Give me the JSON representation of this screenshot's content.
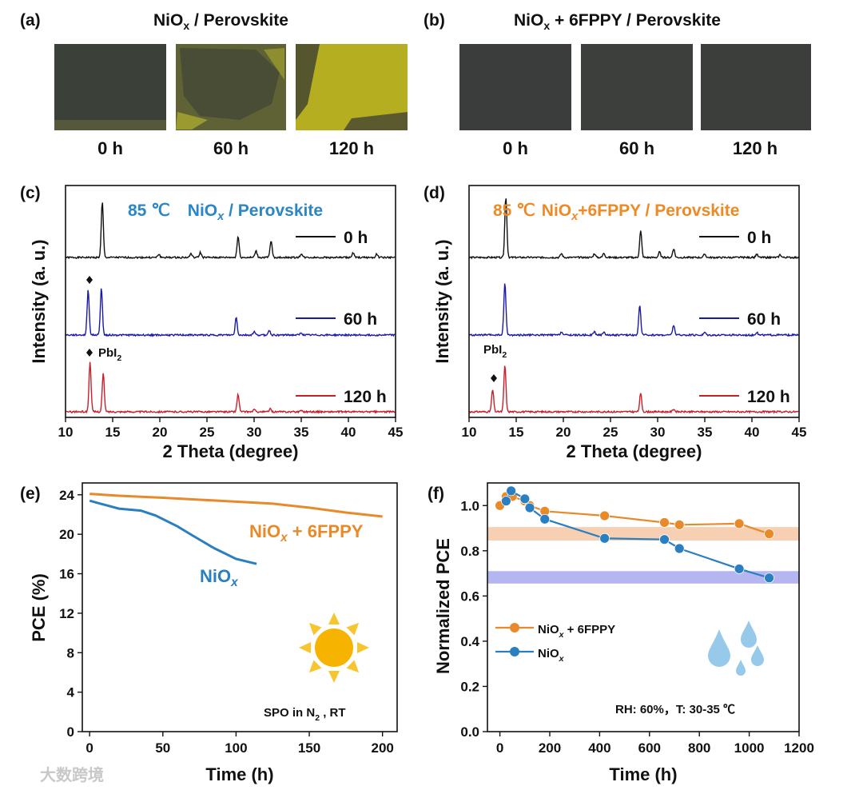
{
  "panels": {
    "a": {
      "label": "(a)",
      "title_main": "NiO",
      "title_sub": "x",
      "title_rest": " / Perovskite",
      "captions": [
        "0 h",
        "60 h",
        "120 h"
      ]
    },
    "b": {
      "label": "(b)",
      "title_main": "NiO",
      "title_sub": "x",
      "title_rest": " + 6FPPY / Perovskite",
      "captions": [
        "0 h",
        "60 h",
        "120 h"
      ]
    },
    "c": {
      "label": "(c)"
    },
    "d": {
      "label": "(d)"
    },
    "e": {
      "label": "(e)"
    },
    "f": {
      "label": "(f)"
    }
  },
  "colors": {
    "black": "#111111",
    "blue": "#1a1aa8",
    "red": "#c8202a",
    "orange": "#e88a2a",
    "lightblue": "#2a7fc0",
    "title_blue": "#2a86c4",
    "title_orange": "#ee8a26"
  },
  "watermark": "大数跨境",
  "chart_data": [
    {
      "id": "c",
      "type": "line",
      "title_temp": "85 ℃",
      "title_main": "NiO",
      "title_sub": "x",
      "title_rest": " / Perovskite",
      "xlabel": "2 Theta (degree)",
      "ylabel": "Intensity (a. u.)",
      "xlim": [
        10,
        45
      ],
      "xticks": [
        "10",
        "15",
        "20",
        "25",
        "30",
        "35",
        "40",
        "45"
      ],
      "annotation_main": "PbI",
      "annotation_sub": "2",
      "series": [
        {
          "name": "0 h",
          "color": "#111111",
          "peaks": [
            [
              13.9,
              100
            ],
            [
              19.9,
              6
            ],
            [
              23.3,
              7
            ],
            [
              24.3,
              9
            ],
            [
              28.3,
              38
            ],
            [
              30.2,
              12
            ],
            [
              31.8,
              30
            ],
            [
              35,
              7
            ],
            [
              40.5,
              8
            ],
            [
              43,
              6
            ]
          ]
        },
        {
          "name": "60 h",
          "color": "#1a1aa8",
          "peaks": [
            [
              12.4,
              82
            ],
            [
              13.8,
              85
            ],
            [
              28.1,
              32
            ],
            [
              30,
              6
            ],
            [
              31.6,
              9
            ],
            [
              35,
              4
            ]
          ]
        },
        {
          "name": "120 h",
          "color": "#c8202a",
          "peaks": [
            [
              12.6,
              90
            ],
            [
              14.0,
              70
            ],
            [
              28.3,
              32
            ],
            [
              30,
              4
            ],
            [
              31.7,
              5
            ],
            [
              35,
              3
            ]
          ]
        }
      ]
    },
    {
      "id": "d",
      "type": "line",
      "title_temp": "85 ℃",
      "title_main": "NiO",
      "title_sub": "x",
      "title_rest": "+6FPPY / Perovskite",
      "xlabel": "2 Theta (degree)",
      "ylabel": "Intensity (a. u.)",
      "xlim": [
        10,
        45
      ],
      "xticks": [
        "10",
        "15",
        "20",
        "25",
        "30",
        "35",
        "40",
        "45"
      ],
      "annotation_main": "PbI",
      "annotation_sub": "2",
      "series": [
        {
          "name": "0 h",
          "color": "#111111",
          "peaks": [
            [
              13.9,
              110
            ],
            [
              19.8,
              7
            ],
            [
              23.3,
              7
            ],
            [
              24.3,
              8
            ],
            [
              28.2,
              48
            ],
            [
              30.2,
              10
            ],
            [
              31.7,
              16
            ],
            [
              35,
              6
            ],
            [
              40.5,
              6
            ],
            [
              43,
              5
            ]
          ]
        },
        {
          "name": "60 h",
          "color": "#1a1aa8",
          "peaks": [
            [
              13.8,
              95
            ],
            [
              19.8,
              6
            ],
            [
              23.3,
              6
            ],
            [
              24.3,
              6
            ],
            [
              28.1,
              54
            ],
            [
              31.7,
              18
            ],
            [
              35,
              5
            ],
            [
              40.5,
              5
            ]
          ]
        },
        {
          "name": "120 h",
          "color": "#c8202a",
          "peaks": [
            [
              12.5,
              40
            ],
            [
              13.8,
              85
            ],
            [
              28.2,
              33
            ],
            [
              31.7,
              5
            ]
          ]
        }
      ]
    },
    {
      "id": "e",
      "type": "line",
      "xlabel": "Time (h)",
      "ylabel": "PCE (%)",
      "xlim": [
        -5,
        210
      ],
      "ylim": [
        0,
        25.2
      ],
      "xticks": [
        0,
        50,
        100,
        150,
        200
      ],
      "yticks": [
        0,
        4,
        8,
        12,
        16,
        20,
        24
      ],
      "annotation": "SPO  in N",
      "annotation_sub": "2",
      "annotation_rest": " , RT",
      "series": [
        {
          "name_main": "NiO",
          "name_sub": "x",
          "name_rest": " + 6FPPY",
          "color": "#e88a2a",
          "x": [
            0,
            20,
            50,
            100,
            125,
            150,
            175,
            200
          ],
          "y": [
            24.1,
            23.9,
            23.7,
            23.3,
            23.1,
            22.7,
            22.2,
            21.8
          ]
        },
        {
          "name_main": "NiO",
          "name_sub": "x",
          "name_rest": "",
          "color": "#2a7fc0",
          "x": [
            0,
            10,
            20,
            35,
            45,
            60,
            70,
            85,
            100,
            114
          ],
          "y": [
            23.4,
            23.0,
            22.6,
            22.4,
            21.9,
            20.8,
            19.9,
            18.6,
            17.5,
            17.0
          ]
        }
      ]
    },
    {
      "id": "f",
      "type": "line",
      "xlabel": "Time (h)",
      "ylabel": "Normalized PCE",
      "xlim": [
        -50,
        1200
      ],
      "ylim": [
        0,
        1.1
      ],
      "xticks": [
        0,
        200,
        400,
        600,
        800,
        1000,
        1200
      ],
      "yticks": [
        "0.0",
        "0.2",
        "0.4",
        "0.6",
        "0.8",
        "1.0"
      ],
      "annotation": "RH: 60%，T: 30-35 ℃",
      "bands": [
        {
          "color": "#f6c7a6",
          "range": [
            0.845,
            0.905
          ]
        },
        {
          "color": "#a8a8f0",
          "range": [
            0.655,
            0.71
          ]
        }
      ],
      "series": [
        {
          "name_main": "NiO",
          "name_sub": "x",
          "name_rest": " + 6FPPY",
          "color": "#e88a2a",
          "x": [
            0,
            25,
            50,
            100,
            120,
            180,
            420,
            660,
            720,
            960,
            1080
          ],
          "y": [
            1.0,
            1.04,
            1.04,
            1.02,
            1.0,
            0.975,
            0.955,
            0.925,
            0.915,
            0.92,
            0.875
          ]
        },
        {
          "name_main": "NiO",
          "name_sub": "x",
          "name_rest": "",
          "color": "#2a7fc0",
          "x": [
            25,
            45,
            100,
            120,
            180,
            420,
            660,
            720,
            960,
            1080
          ],
          "y": [
            1.02,
            1.065,
            1.03,
            0.99,
            0.94,
            0.855,
            0.85,
            0.81,
            0.72,
            0.68
          ]
        }
      ]
    }
  ]
}
